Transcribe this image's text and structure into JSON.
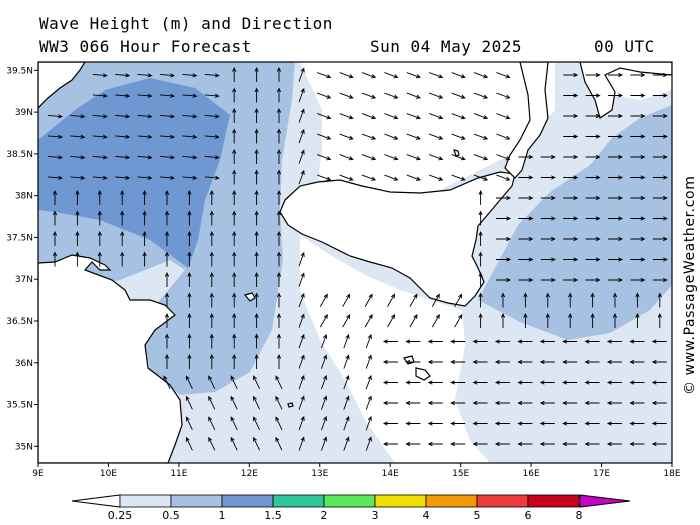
{
  "header": {
    "title": "Wave Height (m) and Direction",
    "model": "WW3 066 Hour Forecast",
    "date": "Sun 04 May 2025",
    "time": "00 UTC"
  },
  "map": {
    "lon_range": [
      9,
      18
    ],
    "lat_range": [
      34.8,
      39.6
    ],
    "lon_ticks": [
      "9E",
      "10E",
      "11E",
      "12E",
      "13E",
      "14E",
      "15E",
      "16E",
      "17E",
      "18E"
    ],
    "lat_ticks": [
      "35N",
      "35.5N",
      "36N",
      "36.5N",
      "37N",
      "37.5N",
      "38N",
      "38.5N",
      "39N",
      "39.5N"
    ],
    "land_color": "#ffffff",
    "coast_color": "#000000"
  },
  "colorbar": {
    "labels": [
      "0.25",
      "0.5",
      "1",
      "1.5",
      "2",
      "3",
      "4",
      "5",
      "6",
      "8"
    ],
    "colors": [
      "#dde7f4",
      "#a7c1e2",
      "#6f97d2",
      "#2fc79a",
      "#5be85b",
      "#f0e000",
      "#f39a00",
      "#ec3c3c",
      "#c8001a",
      "#c800c8"
    ]
  },
  "credit": "© www.PassageWeather.com"
}
